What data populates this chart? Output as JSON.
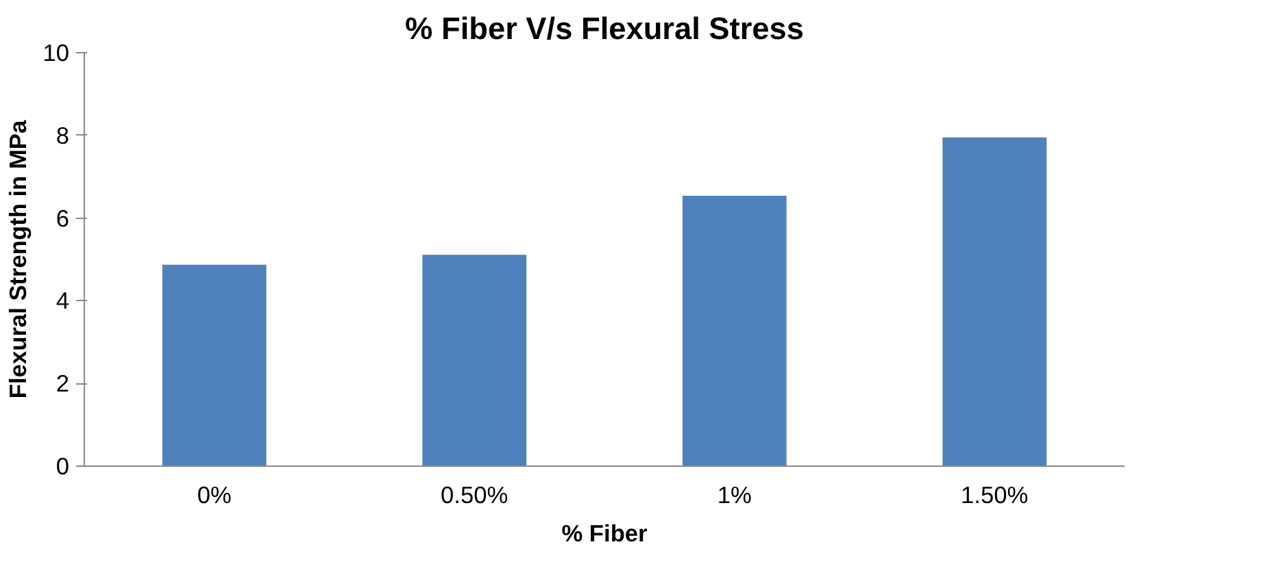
{
  "chart_data": {
    "type": "bar",
    "title": "% Fiber V/s Flexural Stress",
    "xlabel": "% Fiber",
    "ylabel": "Flexural Strength in MPa",
    "categories": [
      "0%",
      "0.50%",
      "1%",
      "1.50%"
    ],
    "values": [
      4.87,
      5.11,
      6.54,
      7.95
    ],
    "color": "#4f81bd",
    "ylim": [
      0,
      10
    ],
    "yticks": [
      0,
      2,
      4,
      6,
      8,
      10
    ],
    "grid": false
  }
}
